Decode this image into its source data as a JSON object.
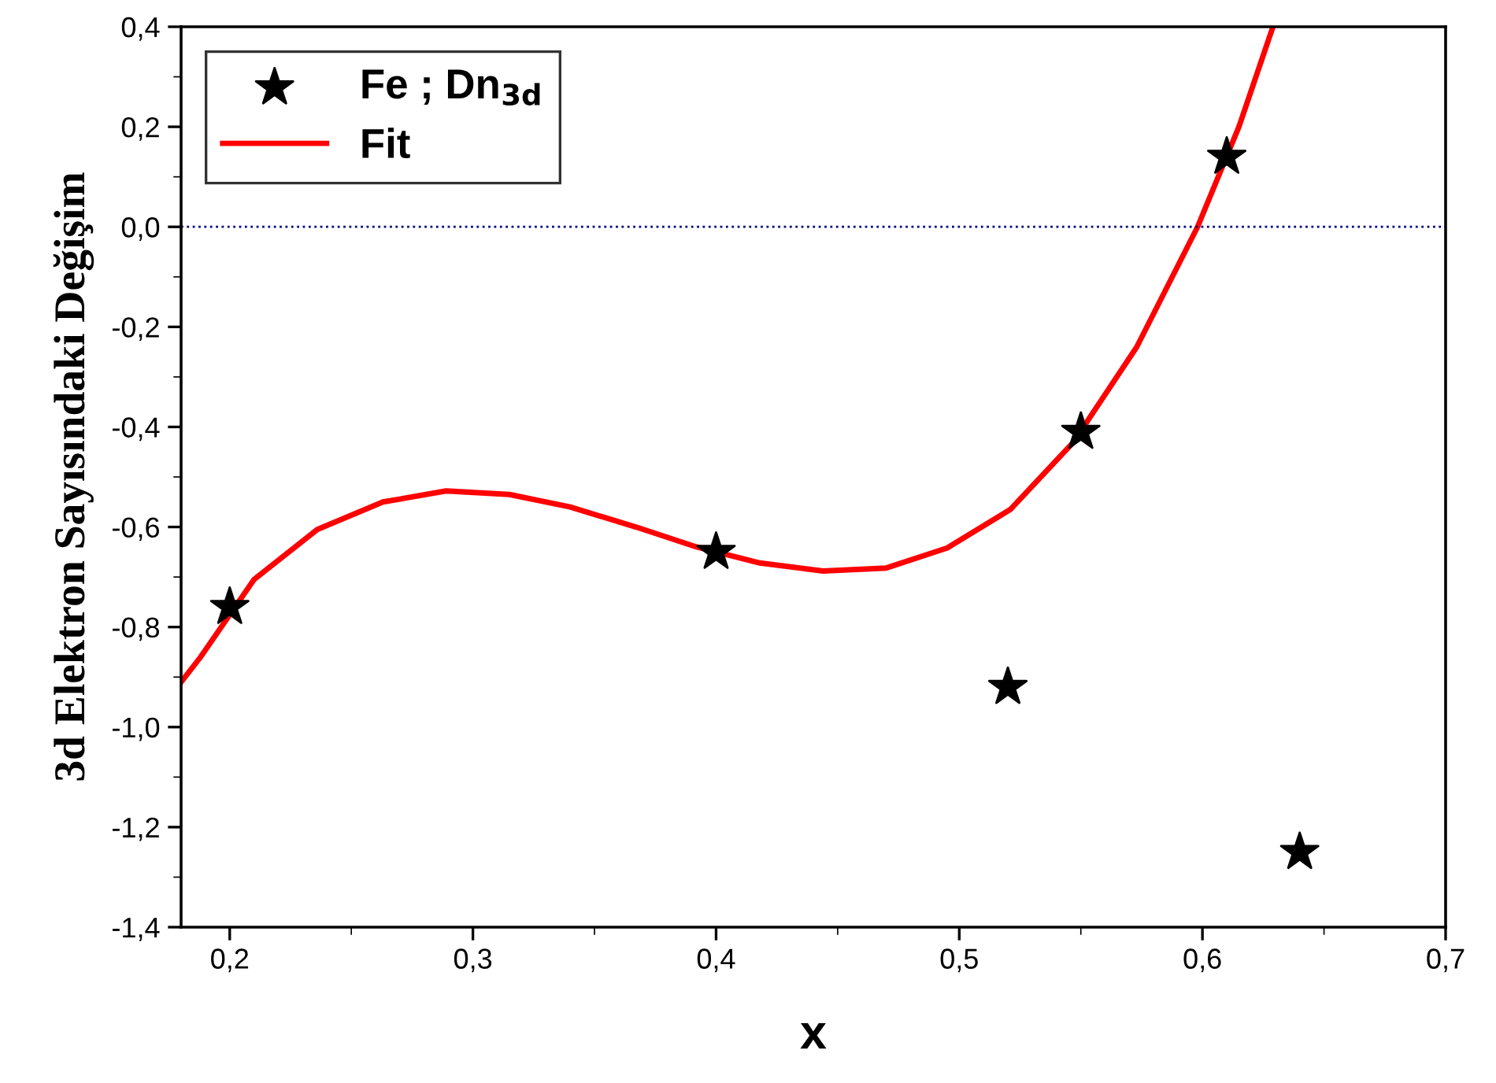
{
  "chart_data": {
    "type": "scatter",
    "xlabel": "x",
    "ylabel": "3d Elektron Sayısındaki Değişim",
    "series": [
      {
        "name": "Fe ; Dn$_{3d}$",
        "color": "#000000",
        "marker": "star",
        "x": [
          0.2,
          0.4,
          0.52,
          0.55,
          0.61,
          0.64
        ],
        "values": [
          -0.76,
          -0.65,
          -0.92,
          -0.41,
          0.14,
          -1.25
        ]
      },
      {
        "name": "Fit",
        "type": "line",
        "color": "#ff0000",
        "line_style": "solid",
        "x": [
          0.18,
          0.188,
          0.21,
          0.236,
          0.263,
          0.289,
          0.315,
          0.34,
          0.367,
          0.392,
          0.418,
          0.444,
          0.47,
          0.495,
          0.521,
          0.547,
          0.573,
          0.598,
          0.615,
          0.629
        ],
        "values": [
          -0.91,
          -0.86,
          -0.705,
          -0.605,
          -0.55,
          -0.528,
          -0.535,
          -0.56,
          -0.6,
          -0.64,
          -0.672,
          -0.688,
          -0.682,
          -0.642,
          -0.565,
          -0.43,
          -0.24,
          0.0,
          0.2,
          0.4
        ]
      }
    ],
    "ref_lines": [
      {
        "axis": "y",
        "value": 0,
        "color": "#000080",
        "line_style": "dotted"
      }
    ],
    "xlim": [
      0.18,
      0.7
    ],
    "ylim": [
      -1.4,
      0.4
    ],
    "xticks": [
      {
        "value": 0.2,
        "label": "0,2"
      },
      {
        "value": 0.3,
        "label": "0,3"
      },
      {
        "value": 0.4,
        "label": "0,4"
      },
      {
        "value": 0.5,
        "label": "0,5"
      },
      {
        "value": 0.6,
        "label": "0,6"
      },
      {
        "value": 0.7,
        "label": "0,7"
      }
    ],
    "yticks": [
      {
        "value": -1.4,
        "label": "-1,4"
      },
      {
        "value": -1.2,
        "label": "-1,2"
      },
      {
        "value": -1.0,
        "label": "-1,0"
      },
      {
        "value": -0.8,
        "label": "-0,8"
      },
      {
        "value": -0.6,
        "label": "-0,6"
      },
      {
        "value": -0.4,
        "label": "-0,4"
      },
      {
        "value": -0.2,
        "label": "-0,2"
      },
      {
        "value": 0.0,
        "label": "0,0"
      },
      {
        "value": 0.2,
        "label": "0,2"
      },
      {
        "value": 0.4,
        "label": "0,4"
      }
    ],
    "grid": false,
    "legend": "top left"
  }
}
